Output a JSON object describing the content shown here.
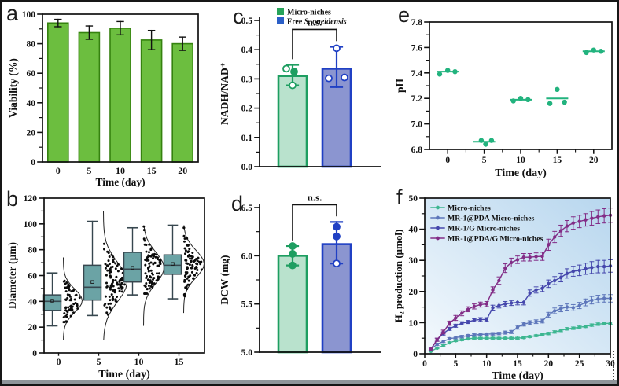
{
  "figure": {
    "panel_labels": {
      "a": "a",
      "b": "b",
      "c": "c",
      "d": "d",
      "e": "e",
      "f": "f"
    },
    "border_color": "#161616",
    "bottom_strip_color": "#8f959a"
  },
  "chart_data": [
    {
      "id": "a",
      "type": "bar",
      "xlabel": "Time (day)",
      "ylabel": "Viability (%)",
      "categories": [
        "0",
        "5",
        "10",
        "15",
        "20"
      ],
      "values": [
        94,
        87.5,
        90.5,
        82.5,
        80
      ],
      "errors": [
        2.5,
        4.5,
        4.5,
        6.5,
        4.5
      ],
      "ylim": [
        0,
        100
      ],
      "ytick_step": 20,
      "yminor_step": 10,
      "bar_fill": "#6cbe3f",
      "bar_stroke": "#35820f",
      "error_color": "#111111",
      "frame": "box",
      "legend_position": "none",
      "grid": false
    },
    {
      "id": "b",
      "type": "box",
      "xlabel": "Time (day)",
      "ylabel": "Diameter (μm)",
      "categories": [
        "0",
        "5",
        "10",
        "15"
      ],
      "boxes": [
        {
          "whisker_low": 21,
          "q1": 33,
          "median": 40,
          "mean": 40.5,
          "q3": 45,
          "whisker_high": 62,
          "sd": 9,
          "n": 60,
          "pt_min": 24,
          "pt_max": 74,
          "violin_min": 10,
          "violin_max": 74,
          "cloud_w": 24
        },
        {
          "whisker_low": 29,
          "q1": 41,
          "median": 51,
          "mean": 55,
          "q3": 68,
          "whisker_high": 102,
          "sd": 15,
          "n": 95,
          "pt_min": 28,
          "pt_max": 110,
          "violin_min": 10,
          "violin_max": 110,
          "cloud_w": 30
        },
        {
          "whisker_low": 45,
          "q1": 55,
          "median": 65,
          "mean": 66,
          "q3": 78,
          "whisker_high": 97,
          "sd": 12,
          "n": 85,
          "pt_min": 46,
          "pt_max": 98,
          "violin_min": 21,
          "violin_max": 98,
          "cloud_w": 26
        },
        {
          "whisker_low": 42,
          "q1": 61,
          "median": 68,
          "mean": 69,
          "q3": 76,
          "whisker_high": 99,
          "sd": 10.5,
          "n": 85,
          "pt_min": 44,
          "pt_max": 97,
          "violin_min": 31,
          "violin_max": 99,
          "cloud_w": 26
        }
      ],
      "ylim": [
        0,
        120
      ],
      "ytick_step": 20,
      "yminor_step": 10,
      "box_fill": "#6ba3a5",
      "box_stroke": "#37474f",
      "point_color": "#0b0b0b",
      "violin_color": "#222222",
      "frame": "box",
      "grid": false
    },
    {
      "id": "c",
      "type": "bar",
      "xlabel": "",
      "ylabel": "NADH/NAD⁺",
      "legend": [
        {
          "text": "Micro-niches",
          "italic": "",
          "swatch": "#27a35a"
        },
        {
          "text": "Free ",
          "italic": "S. oneidensis",
          "swatch": "#2b5fc7"
        }
      ],
      "categories": [
        "Micro-niches",
        "Free S. oneidensis"
      ],
      "values": [
        0.31,
        0.335
      ],
      "err_low": [
        0.032,
        0.063
      ],
      "err_high": [
        0.038,
        0.075
      ],
      "points": [
        [
          [
            -8,
            0.335,
            0
          ],
          [
            2,
            0.325,
            1
          ],
          [
            0,
            0.278,
            0
          ]
        ],
        [
          [
            -10,
            0.302,
            0
          ],
          [
            10,
            0.305,
            0
          ],
          [
            0,
            0.405,
            0
          ]
        ]
      ],
      "bar_fills": [
        "#b9e2cd",
        "#8b95d0"
      ],
      "bar_strokes": [
        "#1e9e61",
        "#2040c4"
      ],
      "ylim": [
        0,
        0.5
      ],
      "ytick_step": 0.1,
      "yminor_step": 0.05,
      "ydecimals": 1,
      "sig_label": "n.s.",
      "frame": "LB",
      "grid": false
    },
    {
      "id": "d",
      "type": "bar",
      "xlabel": "",
      "ylabel": "DCW (mg)",
      "categories": [
        "Micro-niches",
        "Free S. oneidensis"
      ],
      "values": [
        6.0,
        6.12
      ],
      "err_low": [
        0.1,
        0.2
      ],
      "err_high": [
        0.1,
        0.23
      ],
      "points": [
        [
          [
            0,
            6.1,
            1
          ],
          [
            0,
            6.02,
            1
          ],
          [
            0,
            5.9,
            1
          ]
        ],
        [
          [
            0,
            6.3,
            1
          ],
          [
            0,
            6.2,
            1
          ],
          [
            0,
            5.92,
            0
          ]
        ]
      ],
      "bar_fills": [
        "#b9e2cd",
        "#8b95d0"
      ],
      "bar_strokes": [
        "#1e9e61",
        "#2040c4"
      ],
      "ylim": [
        5.0,
        6.5
      ],
      "ytick_step": 0.5,
      "yminor_step": 0.25,
      "ydecimals": 1,
      "sig_label": "n.s.",
      "frame": "LB",
      "grid": false
    },
    {
      "id": "e",
      "type": "scatter",
      "xlabel": "Time (day)",
      "ylabel": "pH",
      "point_color": "#22b37e",
      "groups": [
        {
          "x": 0,
          "mean": 7.41,
          "points": [
            [
              -1.1,
              7.39
            ],
            [
              0,
              7.42
            ],
            [
              1,
              7.41
            ]
          ]
        },
        {
          "x": 5,
          "mean": 6.86,
          "points": [
            [
              -0.4,
              6.87
            ],
            [
              0.2,
              6.84
            ],
            [
              1,
              6.87
            ]
          ]
        },
        {
          "x": 10,
          "mean": 7.19,
          "points": [
            [
              -1,
              7.18
            ],
            [
              0,
              7.2
            ],
            [
              1,
              7.19
            ]
          ]
        },
        {
          "x": 15,
          "mean": 7.2,
          "points": [
            [
              -1,
              7.16
            ],
            [
              0,
              7.27
            ],
            [
              1,
              7.17
            ]
          ]
        },
        {
          "x": 20,
          "mean": 7.57,
          "points": [
            [
              -1,
              7.56
            ],
            [
              0,
              7.58
            ],
            [
              1,
              7.57
            ]
          ]
        }
      ],
      "xticks": [
        0,
        5,
        10,
        15,
        20
      ],
      "xlim": [
        -2.5,
        22.5
      ],
      "xminor_step": 2.5,
      "ylim": [
        6.8,
        7.8
      ],
      "ytick_step": 0.2,
      "yminor_step": 0.1,
      "ydecimals": 1,
      "frame": "box",
      "grid": false
    },
    {
      "id": "f",
      "type": "line",
      "xlabel": "Time (day)",
      "ylabel": "H₂ production (μmol)",
      "x": [
        1,
        2,
        3,
        4,
        5,
        6,
        7,
        8,
        9,
        10,
        11,
        12,
        13,
        14,
        15,
        16,
        17,
        18,
        19,
        20,
        21,
        22,
        23,
        24,
        25,
        26,
        27,
        28,
        29,
        30
      ],
      "series": [
        {
          "name": "Micro-niches",
          "color": "#3cb690",
          "values": [
            0.8,
            1.8,
            2.6,
            3.5,
            4.2,
            4.5,
            4.8,
            5.0,
            5.0,
            5.0,
            5.0,
            5.0,
            5.0,
            5.0,
            5.0,
            5.2,
            5.5,
            5.8,
            6.2,
            6.5,
            7.0,
            7.5,
            8.0,
            8.2,
            8.5,
            8.8,
            9.2,
            9.5,
            9.7,
            9.8
          ],
          "err": [
            0.2,
            0.2,
            0.3,
            0.3,
            0.3,
            0.3,
            0.3,
            0.3,
            0.3,
            0.3,
            0.3,
            0.3,
            0.3,
            0.3,
            0.3,
            0.3,
            0.3,
            0.3,
            0.3,
            0.4,
            0.4,
            0.4,
            0.4,
            0.4,
            0.4,
            0.4,
            0.4,
            0.4,
            0.4,
            0.4
          ]
        },
        {
          "name": "MR-1@PDA Micro-niches",
          "color": "#5d76ba",
          "values": [
            1.5,
            3.0,
            4.0,
            4.8,
            5.2,
            5.5,
            5.8,
            6.0,
            6.2,
            6.3,
            6.4,
            6.5,
            6.8,
            7.0,
            8.5,
            9.5,
            10.0,
            10.3,
            10.5,
            12.5,
            13.8,
            14.5,
            15.0,
            14.8,
            15.5,
            16.5,
            17.2,
            17.6,
            17.8,
            17.8
          ],
          "err": [
            0.3,
            0.4,
            0.4,
            0.4,
            0.4,
            0.4,
            0.4,
            0.4,
            0.4,
            0.4,
            0.4,
            0.4,
            0.5,
            0.5,
            0.6,
            0.6,
            0.6,
            0.6,
            0.6,
            0.8,
            0.9,
            1.0,
            1.0,
            1.0,
            1.0,
            1.1,
            1.2,
            1.2,
            1.2,
            1.2
          ]
        },
        {
          "name": "MR-1/G Micro-niches",
          "color": "#4547ac",
          "values": [
            1.5,
            4.5,
            6.5,
            8.0,
            9.0,
            9.8,
            10.2,
            10.8,
            11.0,
            11.0,
            14.8,
            15.5,
            16.0,
            16.3,
            16.5,
            16.5,
            19.5,
            20.5,
            21.0,
            22.5,
            23.5,
            24.5,
            25.8,
            26.5,
            26.8,
            27.3,
            27.7,
            28.0,
            28.0,
            28.2
          ],
          "err": [
            0.3,
            0.5,
            0.5,
            0.5,
            0.5,
            0.5,
            0.5,
            0.5,
            0.6,
            0.6,
            0.8,
            0.8,
            0.8,
            0.8,
            0.8,
            0.8,
            1.0,
            1.0,
            1.0,
            1.2,
            1.3,
            1.4,
            1.5,
            1.6,
            1.7,
            1.8,
            1.9,
            2.0,
            2.0,
            2.0
          ]
        },
        {
          "name": "MR-1@PDA/G Micro-niches",
          "color": "#822c86",
          "values": [
            1.5,
            4.5,
            7.0,
            9.8,
            11.5,
            13.0,
            14.3,
            15.2,
            15.8,
            16.0,
            20.5,
            23.5,
            27.5,
            29.3,
            30.2,
            31.0,
            31.0,
            31.2,
            31.3,
            35.0,
            37.5,
            39.5,
            41.0,
            42.0,
            42.5,
            43.0,
            43.5,
            44.0,
            44.3,
            44.5
          ],
          "err": [
            0.3,
            0.5,
            0.6,
            0.7,
            0.8,
            0.8,
            0.8,
            0.8,
            0.8,
            0.8,
            1.0,
            1.2,
            1.4,
            1.4,
            1.2,
            1.2,
            1.2,
            1.2,
            1.3,
            1.8,
            1.8,
            1.8,
            1.8,
            2.0,
            2.0,
            2.0,
            2.2,
            2.2,
            2.3,
            2.3
          ]
        }
      ],
      "xlim": [
        0,
        30
      ],
      "xtick_step": 5,
      "xminor_step": 2.5,
      "ylim": [
        0,
        50
      ],
      "ytick_step": 10,
      "yminor_step": 5,
      "bg_gradient": [
        "#f4f9fd",
        "#b7d6ee"
      ],
      "legend_position": "top-left",
      "frame": "box",
      "grid": false
    }
  ]
}
